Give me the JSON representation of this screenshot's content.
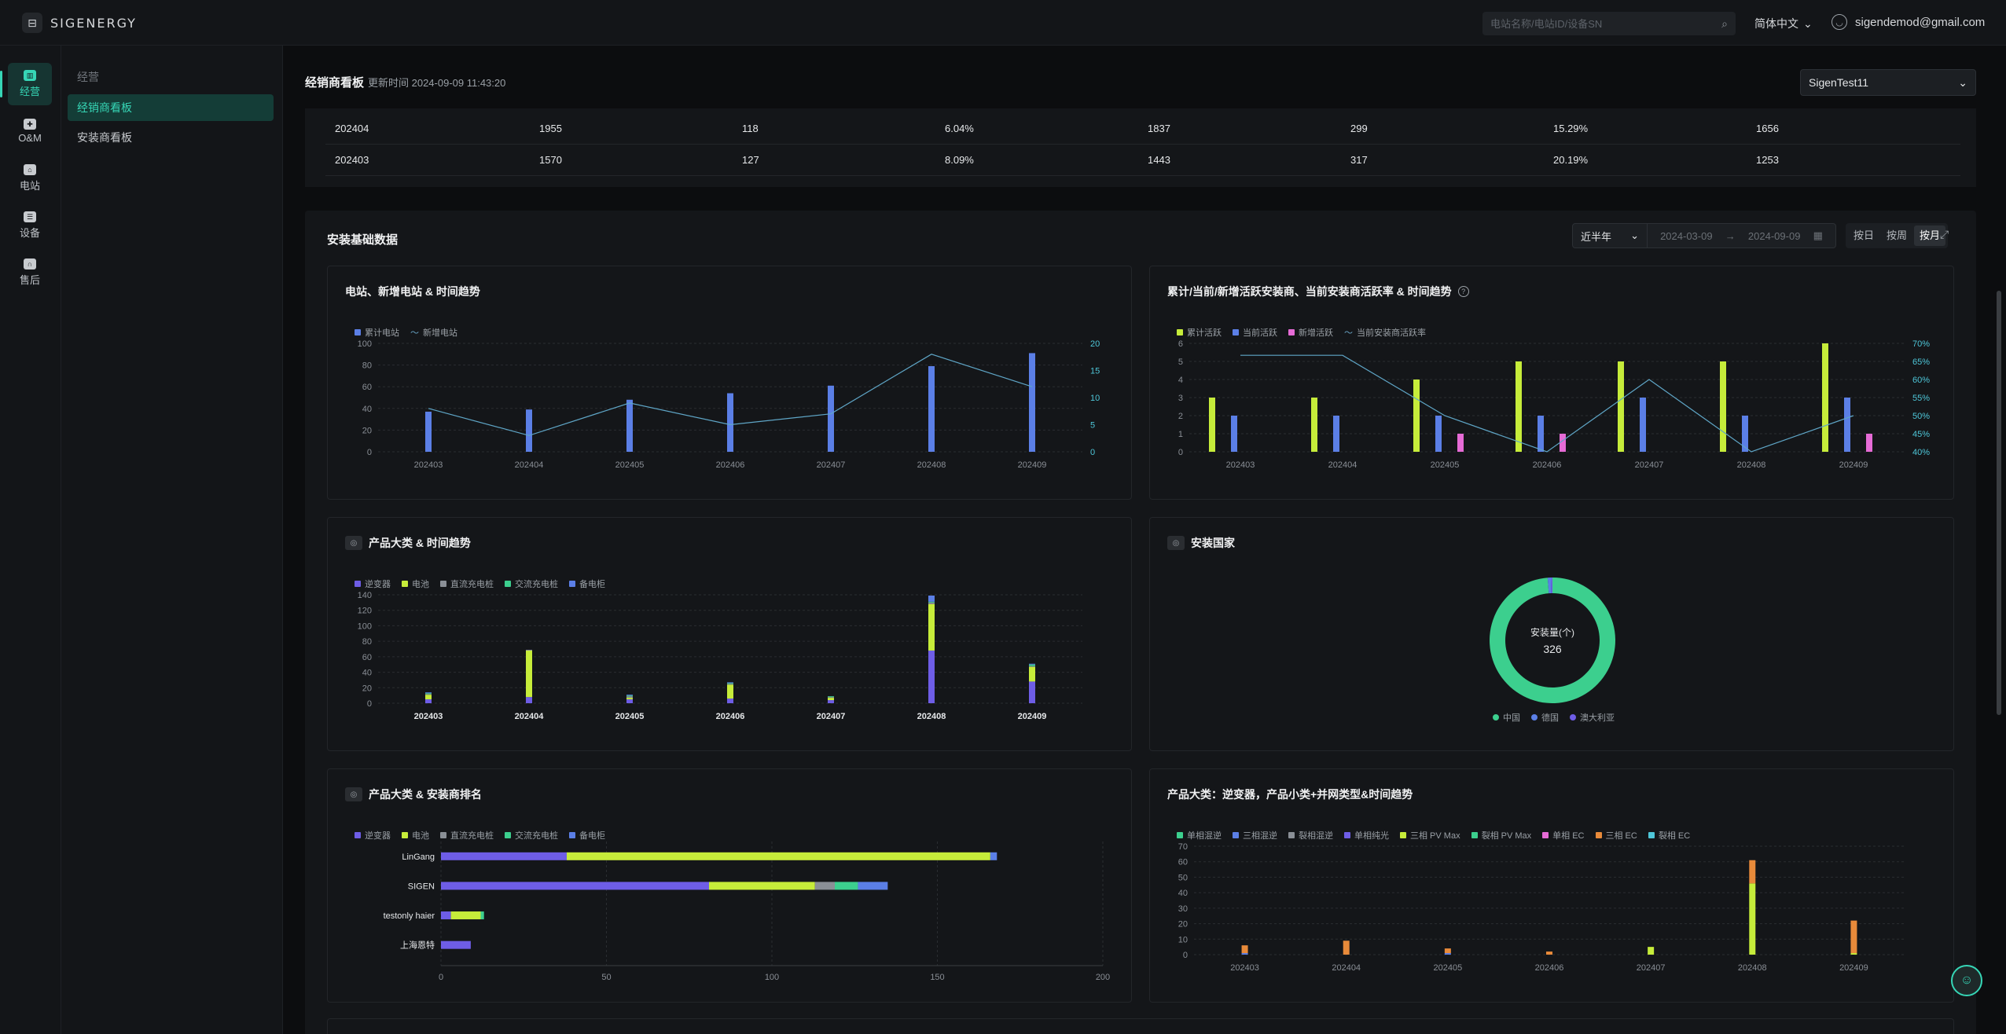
{
  "app": {
    "logo_text": "SIGENERGY",
    "logo_icon": "sigenergy-logo-icon",
    "search_placeholder": "电站名称/电站ID/设备SN",
    "language": "简体中文",
    "user_email": "sigendemod@gmail.com"
  },
  "rail": [
    {
      "label": "经营",
      "icon": "chart-icon",
      "active": true
    },
    {
      "label": "O&M",
      "icon": "maintenance-icon",
      "active": false
    },
    {
      "label": "电站",
      "icon": "station-icon",
      "active": false
    },
    {
      "label": "设备",
      "icon": "device-icon",
      "active": false
    },
    {
      "label": "售后",
      "icon": "headset-icon",
      "active": false
    }
  ],
  "subnav": {
    "group": "经营",
    "items": [
      {
        "label": "经销商看板",
        "active": true
      },
      {
        "label": "安装商看板",
        "active": false
      }
    ]
  },
  "dealer_board": {
    "title": "经销商看板",
    "updated": "更新时间 2024-09-09 11:43:20",
    "selected_org": "SigenTest11",
    "rows": [
      [
        "202404",
        "1955",
        "118",
        "6.04%",
        "1837",
        "299",
        "15.29%",
        "1656"
      ],
      [
        "202403",
        "1570",
        "127",
        "8.09%",
        "1443",
        "317",
        "20.19%",
        "1253"
      ]
    ]
  },
  "install_section": {
    "title": "安装基础数据",
    "range": "近半年",
    "date_from": "2024-03-09",
    "date_to": "2024-09-09",
    "date_arrow": "→",
    "granularity": [
      "按日",
      "按周",
      "按月"
    ],
    "granularity_selected": "按月"
  },
  "colors": {
    "blue": "#5b7fe6",
    "lime": "#c6ec3a",
    "pink": "#e66bd6",
    "purple": "#6e5de6",
    "gray": "#8a8f96",
    "green": "#3ccf8e",
    "teal": "#4ec6d8",
    "orange": "#e88a3a",
    "accent": "#36d6b6"
  },
  "chart_data": [
    {
      "id": "stations",
      "type": "bar",
      "title": "电站、新增电站 & 时间趋势",
      "categories": [
        "202403",
        "202404",
        "202405",
        "202406",
        "202407",
        "202408",
        "202409"
      ],
      "series": [
        {
          "name": "累计电站",
          "kind": "bar",
          "axis": "left",
          "values": [
            37,
            39,
            48,
            54,
            61,
            79,
            91
          ]
        },
        {
          "name": "新增电站",
          "kind": "line",
          "axis": "right",
          "values": [
            8,
            3,
            9,
            5,
            7,
            18,
            12
          ]
        }
      ],
      "ylim": [
        0,
        100
      ],
      "yticks": [
        0,
        20,
        40,
        60,
        80,
        100
      ],
      "y2lim": [
        0,
        20
      ],
      "y2ticks": [
        0,
        5,
        10,
        15,
        20
      ],
      "legend": "top-left",
      "grid": true
    },
    {
      "id": "installers",
      "type": "bar",
      "title": "累计/当前/新增活跃安装商、当前安装商活跃率 & 时间趋势",
      "categories": [
        "202403",
        "202404",
        "202405",
        "202406",
        "202407",
        "202408",
        "202409"
      ],
      "series": [
        {
          "name": "累计活跃",
          "kind": "bar",
          "axis": "left",
          "values": [
            3,
            3,
            4,
            5,
            5,
            5,
            6
          ]
        },
        {
          "name": "当前活跃",
          "kind": "bar",
          "axis": "left",
          "values": [
            2,
            2,
            2,
            2,
            3,
            2,
            3
          ]
        },
        {
          "name": "新增活跃",
          "kind": "bar",
          "axis": "left",
          "values": [
            0,
            0,
            1,
            1,
            0,
            0,
            1
          ]
        },
        {
          "name": "当前安装商活跃率",
          "kind": "line",
          "axis": "right",
          "values": [
            66.7,
            66.7,
            50,
            40,
            60,
            40,
            50
          ]
        }
      ],
      "ylim": [
        0,
        6
      ],
      "yticks": [
        0,
        1,
        2,
        3,
        4,
        5,
        6
      ],
      "y2lim": [
        40,
        70
      ],
      "y2ticks": [
        "40%",
        "45%",
        "50%",
        "55%",
        "60%",
        "65%",
        "70%"
      ],
      "legend": "top-left",
      "grid": true
    },
    {
      "id": "product_trend",
      "type": "bar",
      "title": "产品大类 & 时间趋势",
      "categories": [
        "202403",
        "202404",
        "202405",
        "202406",
        "202407",
        "202408",
        "202409"
      ],
      "series": [
        {
          "name": "逆变器",
          "values": [
            5,
            8,
            5,
            6,
            4,
            68,
            28
          ]
        },
        {
          "name": "电池",
          "values": [
            6,
            60,
            2,
            18,
            3,
            60,
            19
          ]
        },
        {
          "name": "直流充电桩",
          "values": [
            1,
            1,
            2,
            1,
            1,
            2,
            1
          ]
        },
        {
          "name": "交流充电桩",
          "values": [
            1,
            0,
            1,
            1,
            1,
            1,
            2
          ]
        },
        {
          "name": "备电柜",
          "values": [
            1,
            0,
            1,
            1,
            0,
            8,
            1
          ]
        }
      ],
      "stacked": true,
      "ylim": [
        0,
        140
      ],
      "yticks": [
        0,
        20,
        40,
        60,
        80,
        100,
        120,
        140
      ],
      "legend": "top-left",
      "grid": true
    },
    {
      "id": "country",
      "type": "pie",
      "title": "安装国家",
      "center_label": "安装量(个)",
      "center_value": "326",
      "slices": [
        {
          "name": "中国",
          "value": 322
        },
        {
          "name": "德国",
          "value": 3
        },
        {
          "name": "澳大利亚",
          "value": 1
        }
      ],
      "legend": "bottom"
    },
    {
      "id": "product_rank",
      "type": "bar",
      "orientation": "horizontal",
      "title": "产品大类 & 安装商排名",
      "categories": [
        "LinGang",
        "SIGEN",
        "testonly haier",
        "上海恩特"
      ],
      "series": [
        {
          "name": "逆变器",
          "values": [
            38,
            81,
            3,
            9
          ]
        },
        {
          "name": "电池",
          "values": [
            128,
            32,
            9,
            0
          ]
        },
        {
          "name": "直流充电桩",
          "values": [
            0,
            6,
            0,
            0
          ]
        },
        {
          "name": "交流充电桩",
          "values": [
            0,
            7,
            1,
            0
          ]
        },
        {
          "name": "备电柜",
          "values": [
            2,
            9,
            0,
            0
          ]
        }
      ],
      "stacked": true,
      "xlim": [
        0,
        200
      ],
      "xticks": [
        0,
        50,
        100,
        150,
        200
      ],
      "legend": "top-left",
      "grid": true
    },
    {
      "id": "inverter_sub",
      "type": "bar",
      "title": "产品大类：逆变器，产品小类+并网类型&时间趋势",
      "categories": [
        "202403",
        "202404",
        "202405",
        "202406",
        "202407",
        "202408",
        "202409"
      ],
      "series": [
        {
          "name": "单相混逆",
          "values": [
            0,
            0,
            0,
            0,
            0,
            0,
            0
          ]
        },
        {
          "name": "三相混逆",
          "values": [
            1,
            0,
            1,
            0,
            0,
            0,
            0
          ]
        },
        {
          "name": "裂相混逆",
          "values": [
            0,
            0,
            0,
            0,
            0,
            0,
            0
          ]
        },
        {
          "name": "单相纯光",
          "values": [
            0,
            0,
            0,
            0,
            0,
            0,
            0
          ]
        },
        {
          "name": "三相 PV Max",
          "values": [
            0,
            0,
            0,
            0,
            5,
            46,
            1
          ]
        },
        {
          "name": "裂相 PV Max",
          "values": [
            0,
            0,
            0,
            0,
            0,
            0,
            0
          ]
        },
        {
          "name": "单相 EC",
          "values": [
            0,
            0,
            0,
            0,
            0,
            0,
            0
          ]
        },
        {
          "name": "三相 EC",
          "values": [
            5,
            9,
            3,
            2,
            0,
            15,
            21
          ]
        },
        {
          "name": "裂相 EC",
          "values": [
            0,
            0,
            0,
            0,
            0,
            0,
            0
          ]
        }
      ],
      "stacked": true,
      "ylim": [
        0,
        70
      ],
      "yticks": [
        0,
        10,
        20,
        30,
        40,
        50,
        60,
        70
      ],
      "legend": "top-left",
      "grid": true
    }
  ]
}
